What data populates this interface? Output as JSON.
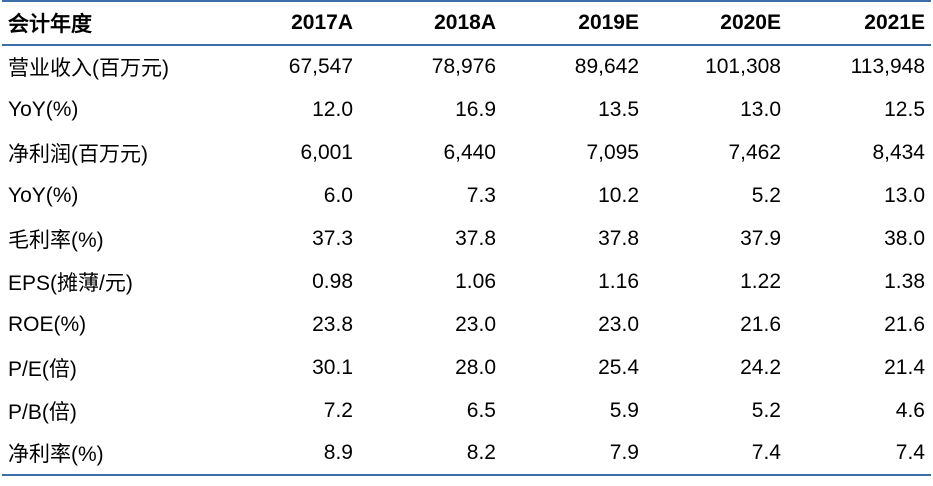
{
  "table": {
    "header": {
      "label": "会计年度",
      "years": [
        "2017A",
        "2018A",
        "2019E",
        "2020E",
        "2021E"
      ]
    },
    "rows": [
      {
        "label": "营业收入(百万元)",
        "values": [
          "67,547",
          "78,976",
          "89,642",
          "101,308",
          "113,948"
        ]
      },
      {
        "label": "YoY(%)",
        "values": [
          "12.0",
          "16.9",
          "13.5",
          "13.0",
          "12.5"
        ]
      },
      {
        "label": "净利润(百万元)",
        "values": [
          "6,001",
          "6,440",
          "7,095",
          "7,462",
          "8,434"
        ]
      },
      {
        "label": "YoY(%)",
        "values": [
          "6.0",
          "7.3",
          "10.2",
          "5.2",
          "13.0"
        ]
      },
      {
        "label": "毛利率(%)",
        "values": [
          "37.3",
          "37.8",
          "37.8",
          "37.9",
          "38.0"
        ]
      },
      {
        "label": "EPS(摊薄/元)",
        "values": [
          "0.98",
          "1.06",
          "1.16",
          "1.22",
          "1.38"
        ]
      },
      {
        "label": "ROE(%)",
        "values": [
          "23.8",
          "23.0",
          "23.0",
          "21.6",
          "21.6"
        ]
      },
      {
        "label": "P/E(倍)",
        "values": [
          "30.1",
          "28.0",
          "25.4",
          "24.2",
          "21.4"
        ]
      },
      {
        "label": "P/B(倍)",
        "values": [
          "7.2",
          "6.5",
          "5.9",
          "5.2",
          "4.6"
        ]
      },
      {
        "label": "净利率(%)",
        "values": [
          "8.9",
          "8.2",
          "7.9",
          "7.4",
          "7.4"
        ]
      }
    ]
  },
  "colors": {
    "rule": "#3c6fa8",
    "text": "#000000",
    "background": "#ffffff"
  }
}
